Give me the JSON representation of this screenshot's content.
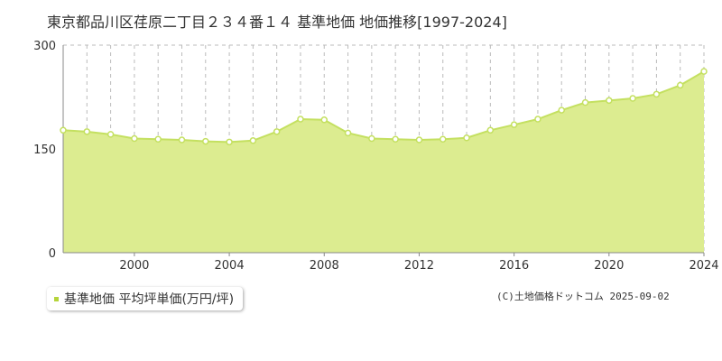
{
  "title": "東京都品川区荏原二丁目２３４番１４ 基準地価 地価推移[1997-2024]",
  "colors": {
    "area": "#dcec90",
    "line": "#c4e060",
    "grid": "#bbbbbb",
    "axis": "#888888",
    "legend_marker": "#b5d43a"
  },
  "chart_data": {
    "type": "area",
    "title": "東京都品川区荏原二丁目２３４番１４ 基準地価 地価推移[1997-2024]",
    "xlabel": "",
    "ylabel": "",
    "xlim": [
      1997,
      2024
    ],
    "ylim": [
      0,
      300
    ],
    "y_ticks": [
      0,
      150,
      300
    ],
    "x_tick_labels": [
      "2000",
      "2004",
      "2008",
      "2012",
      "2016",
      "2020",
      "2024"
    ],
    "grid": true,
    "legend_position": "bottom-left",
    "series": [
      {
        "name": "基準地価 平均坪単価(万円/坪)",
        "x": [
          1997,
          1998,
          1999,
          2000,
          2001,
          2002,
          2003,
          2004,
          2005,
          2006,
          2007,
          2008,
          2009,
          2010,
          2011,
          2012,
          2013,
          2014,
          2015,
          2016,
          2017,
          2018,
          2019,
          2020,
          2021,
          2022,
          2023,
          2024
        ],
        "values": [
          177,
          175,
          171,
          165,
          164,
          163,
          161,
          160,
          162,
          175,
          193,
          192,
          173,
          165,
          164,
          163,
          164,
          166,
          177,
          185,
          193,
          206,
          217,
          220,
          223,
          229,
          242,
          262
        ]
      }
    ]
  },
  "legend": {
    "label": "基準地価 平均坪単価(万円/坪)"
  },
  "footer": {
    "copyright": "(C)土地価格ドットコム 2025-09-02"
  }
}
